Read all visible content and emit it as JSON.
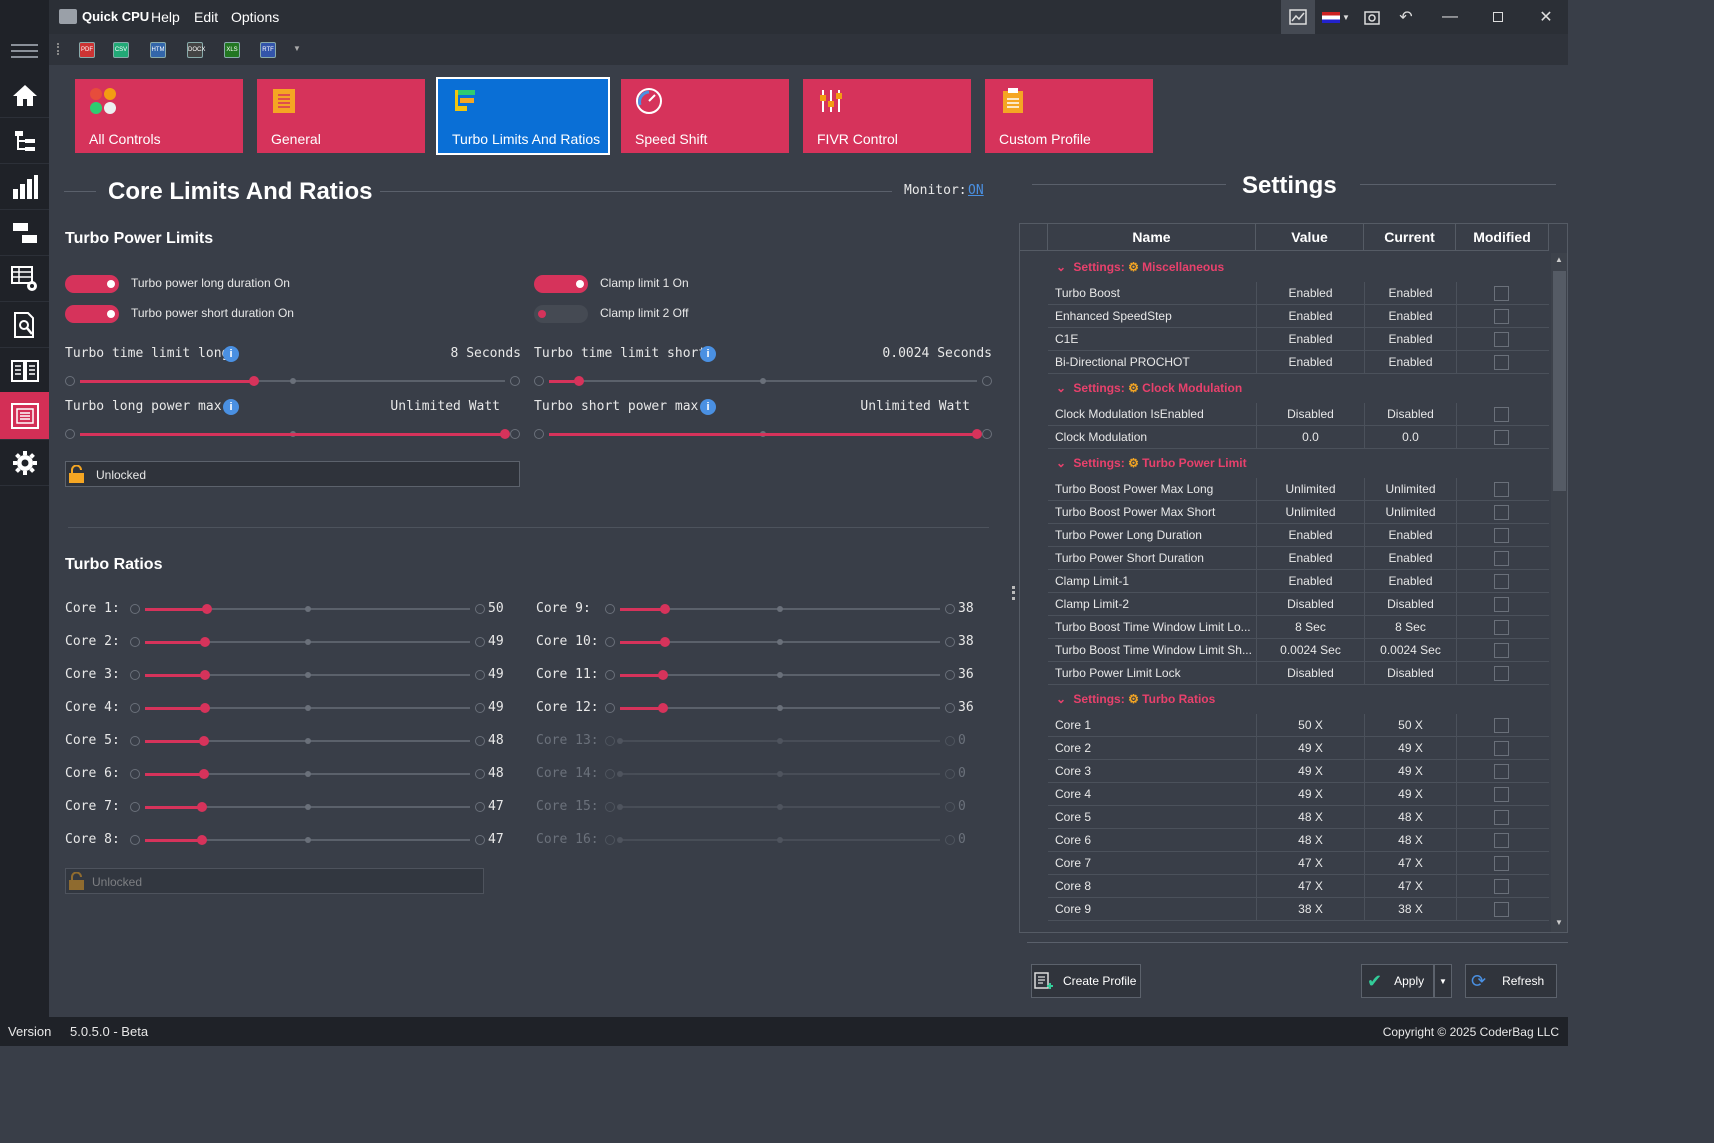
{
  "app": {
    "title": "Quick CPU",
    "menus": [
      "Help",
      "Edit",
      "Options"
    ]
  },
  "export_toolbar": [
    "PDF",
    "CSV",
    "HTM",
    "DOCX",
    "XLS",
    "RTF"
  ],
  "tiles": [
    {
      "label": "All Controls",
      "icon": "all-controls-icon"
    },
    {
      "label": "General",
      "icon": "document-icon"
    },
    {
      "label": "Turbo Limits And Ratios",
      "icon": "turbo-bars-icon",
      "active": true
    },
    {
      "label": "Speed Shift",
      "icon": "speedometer-icon"
    },
    {
      "label": "FIVR Control",
      "icon": "sliders-icon"
    },
    {
      "label": "Custom Profile",
      "icon": "clipboard-icon"
    }
  ],
  "core_limits": {
    "title": "Core Limits And Ratios",
    "monitor_label": "Monitor:",
    "monitor_value": "ON"
  },
  "turbo_power": {
    "title": "Turbo Power Limits",
    "toggles": [
      {
        "label": "Turbo power long duration On",
        "on": true
      },
      {
        "label": "Turbo power short duration On",
        "on": true
      },
      {
        "label": "Clamp limit 1 On",
        "on": true
      },
      {
        "label": "Clamp limit 2 Off",
        "on": false
      }
    ],
    "sliders": [
      {
        "label": "Turbo time limit long",
        "value": "8 Seconds",
        "level": 0.41
      },
      {
        "label": "Turbo time limit short",
        "value": "0.0024 Seconds",
        "level": 0.07
      },
      {
        "label": "Turbo long power max",
        "value": "Unlimited Watt",
        "level": 1.0
      },
      {
        "label": "Turbo short power max",
        "value": "Unlimited Watt",
        "level": 1.0
      }
    ],
    "lock_label": "Unlocked"
  },
  "turbo_ratios": {
    "title": "Turbo Ratios",
    "cores": [
      {
        "label": "Core 1:",
        "value": "50",
        "level": 0.19,
        "enabled": true
      },
      {
        "label": "Core 2:",
        "value": "49",
        "level": 0.185,
        "enabled": true
      },
      {
        "label": "Core 3:",
        "value": "49",
        "level": 0.185,
        "enabled": true
      },
      {
        "label": "Core 4:",
        "value": "49",
        "level": 0.185,
        "enabled": true
      },
      {
        "label": "Core 5:",
        "value": "48",
        "level": 0.18,
        "enabled": true
      },
      {
        "label": "Core 6:",
        "value": "48",
        "level": 0.18,
        "enabled": true
      },
      {
        "label": "Core 7:",
        "value": "47",
        "level": 0.175,
        "enabled": true
      },
      {
        "label": "Core 8:",
        "value": "47",
        "level": 0.175,
        "enabled": true
      },
      {
        "label": "Core 9:",
        "value": "38",
        "level": 0.14,
        "enabled": true
      },
      {
        "label": "Core 10:",
        "value": "38",
        "level": 0.14,
        "enabled": true
      },
      {
        "label": "Core 11:",
        "value": "36",
        "level": 0.133,
        "enabled": true
      },
      {
        "label": "Core 12:",
        "value": "36",
        "level": 0.133,
        "enabled": true
      },
      {
        "label": "Core 13:",
        "value": "0",
        "level": 0,
        "enabled": false
      },
      {
        "label": "Core 14:",
        "value": "0",
        "level": 0,
        "enabled": false
      },
      {
        "label": "Core 15:",
        "value": "0",
        "level": 0,
        "enabled": false
      },
      {
        "label": "Core 16:",
        "value": "0",
        "level": 0,
        "enabled": false
      }
    ],
    "lock_label": "Unlocked"
  },
  "settings": {
    "title": "Settings",
    "columns": [
      "Name",
      "Value",
      "Current",
      "Modified"
    ],
    "group_prefix": "Settings:",
    "groups": [
      {
        "name": "Miscellaneous",
        "rows": [
          [
            "Turbo Boost",
            "Enabled",
            "Enabled"
          ],
          [
            "Enhanced SpeedStep",
            "Enabled",
            "Enabled"
          ],
          [
            "C1E",
            "Enabled",
            "Enabled"
          ],
          [
            "Bi-Directional PROCHOT",
            "Enabled",
            "Enabled"
          ]
        ]
      },
      {
        "name": "Clock Modulation",
        "rows": [
          [
            "Clock Modulation IsEnabled",
            "Disabled",
            "Disabled"
          ],
          [
            "Clock Modulation",
            "0.0",
            "0.0"
          ]
        ]
      },
      {
        "name": "Turbo Power Limit",
        "rows": [
          [
            "Turbo Boost Power Max Long",
            "Unlimited",
            "Unlimited"
          ],
          [
            "Turbo Boost Power Max Short",
            "Unlimited",
            "Unlimited"
          ],
          [
            "Turbo Power Long Duration",
            "Enabled",
            "Enabled"
          ],
          [
            "Turbo Power Short Duration",
            "Enabled",
            "Enabled"
          ],
          [
            "Clamp Limit-1",
            "Enabled",
            "Enabled"
          ],
          [
            "Clamp Limit-2",
            "Disabled",
            "Disabled"
          ],
          [
            "Turbo Boost Time Window Limit Lo...",
            "8 Sec",
            "8 Sec"
          ],
          [
            "Turbo Boost Time Window Limit Sh...",
            "0.0024 Sec",
            "0.0024 Sec"
          ],
          [
            "Turbo Power Limit Lock",
            "Disabled",
            "Disabled"
          ]
        ]
      },
      {
        "name": "Turbo Ratios",
        "rows": [
          [
            "Core 1",
            "50 X",
            "50 X"
          ],
          [
            "Core 2",
            "49 X",
            "49 X"
          ],
          [
            "Core 3",
            "49 X",
            "49 X"
          ],
          [
            "Core 4",
            "49 X",
            "49 X"
          ],
          [
            "Core 5",
            "48 X",
            "48 X"
          ],
          [
            "Core 6",
            "48 X",
            "48 X"
          ],
          [
            "Core 7",
            "47 X",
            "47 X"
          ],
          [
            "Core 8",
            "47 X",
            "47 X"
          ],
          [
            "Core 9",
            "38 X",
            "38 X"
          ]
        ]
      }
    ]
  },
  "buttons": {
    "create_profile": "Create Profile",
    "apply": "Apply",
    "refresh": "Refresh"
  },
  "status": {
    "version_label": "Version",
    "version_value": "5.0.5.0 - Beta",
    "copyright": "Copyright © 2025 CoderBag LLC"
  },
  "colors": {
    "accent": "#d6335b",
    "active_tile": "#0a6fd6",
    "link": "#4a90e2"
  }
}
